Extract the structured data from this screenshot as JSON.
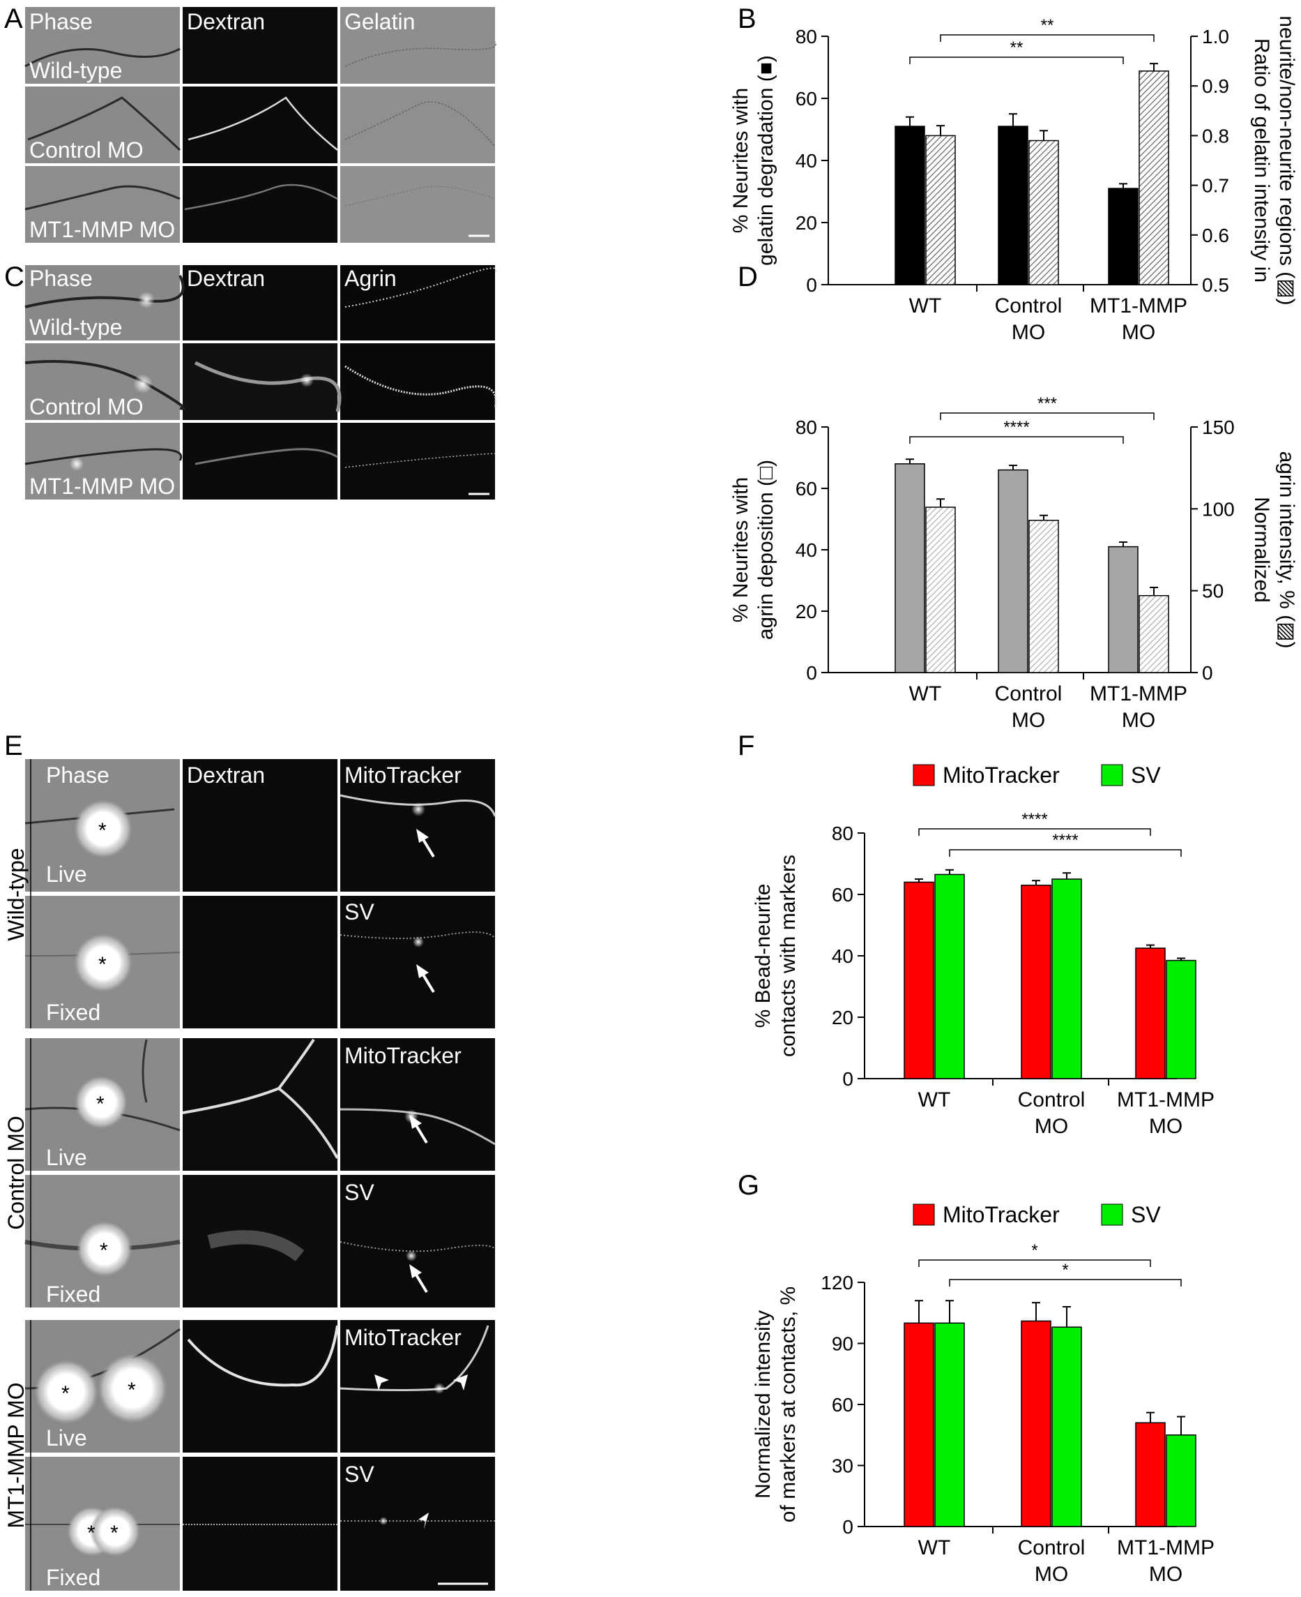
{
  "figure": {
    "panel_letters": {
      "A": "A",
      "B": "B",
      "C": "C",
      "D": "D",
      "E": "E",
      "F": "F",
      "G": "G"
    },
    "panel_A": {
      "column_titles": [
        "Phase",
        "Dextran",
        "Gelatin"
      ],
      "row_labels": [
        "Wild-type",
        "Control MO",
        "MT1-MMP MO"
      ]
    },
    "panel_C": {
      "column_titles": [
        "Phase",
        "Dextran",
        "Agrin"
      ],
      "row_labels": [
        "Wild-type",
        "Control MO",
        "MT1-MMP MO"
      ]
    },
    "panel_E": {
      "column_titles": [
        "Phase",
        "Dextran",
        "MitoTracker"
      ],
      "group_labels": [
        "Wild-type",
        "Control MO",
        "MT1-MMP MO"
      ],
      "live_label": "Live",
      "fixed_label": "Fixed",
      "marker_live": "MitoTracker",
      "marker_fixed": "SV",
      "bead_marker": "*"
    },
    "colors": {
      "black_bar": "#000000",
      "gray_bar": "#a6a6a6",
      "red": "#ff0000",
      "green": "#00ee00",
      "micro_bg_phase": "#8a8a8a",
      "micro_bg_dark": "#0d0d0d"
    }
  },
  "chart_data": [
    {
      "panel": "B",
      "type": "bar",
      "categories": [
        "WT",
        "Control MO",
        "MT1-MMP MO"
      ],
      "category_lines": [
        [
          "WT"
        ],
        [
          "Control",
          "MO"
        ],
        [
          "MT1-MMP",
          "MO"
        ]
      ],
      "series": [
        {
          "axis": "left",
          "fill": "solid-black",
          "values": [
            51,
            51,
            31
          ],
          "errors": [
            3,
            4,
            1.5
          ]
        },
        {
          "axis": "right",
          "fill": "hatched",
          "values": [
            0.8,
            0.79,
            0.93
          ],
          "errors": [
            0.02,
            0.02,
            0.015
          ]
        }
      ],
      "ylabel_left": [
        "% Neurites with",
        "gelatin degradation (■)"
      ],
      "ylabel_right": [
        "Ratio of gelatin intensity in",
        "neurite/non-neurite regions (▨)"
      ],
      "ylim_left": [
        0,
        80
      ],
      "yticks_left": [
        "0",
        "20",
        "40",
        "60",
        "80"
      ],
      "ylim_right": [
        0.5,
        1.0
      ],
      "yticks_right": [
        "0.5",
        "0.6",
        "0.7",
        "0.8",
        "0.9",
        "1.0"
      ],
      "significance": [
        "**",
        "**"
      ]
    },
    {
      "panel": "D",
      "type": "bar",
      "categories": [
        "WT",
        "Control MO",
        "MT1-MMP MO"
      ],
      "category_lines": [
        [
          "WT"
        ],
        [
          "Control",
          "MO"
        ],
        [
          "MT1-MMP",
          "MO"
        ]
      ],
      "series": [
        {
          "axis": "left",
          "fill": "solid-gray",
          "values": [
            68,
            66,
            41
          ],
          "errors": [
            1.5,
            1.5,
            1.5
          ]
        },
        {
          "axis": "right",
          "fill": "hatched",
          "values": [
            101,
            93,
            47
          ],
          "errors": [
            5,
            3,
            5
          ]
        }
      ],
      "ylabel_left": [
        "% Neurites with",
        "agrin deposition (□)"
      ],
      "ylabel_right": [
        "Normalized",
        "agrin intensity, % (▨)"
      ],
      "ylim_left": [
        0,
        80
      ],
      "yticks_left": [
        "0",
        "20",
        "40",
        "60",
        "80"
      ],
      "ylim_right": [
        0,
        150
      ],
      "yticks_right": [
        "0",
        "50",
        "100",
        "150"
      ],
      "significance": [
        "****",
        "***"
      ]
    },
    {
      "panel": "F",
      "type": "bar",
      "categories": [
        "WT",
        "Control MO",
        "MT1-MMP MO"
      ],
      "category_lines": [
        [
          "WT"
        ],
        [
          "Control",
          "MO"
        ],
        [
          "MT1-MMP",
          "MO"
        ]
      ],
      "series": [
        {
          "name": "MitoTracker",
          "values": [
            64,
            63,
            42.5
          ],
          "errors": [
            1,
            1.5,
            1
          ]
        },
        {
          "name": "SV",
          "values": [
            66.5,
            65,
            38.5
          ],
          "errors": [
            1.5,
            2,
            0.7
          ]
        }
      ],
      "ylabel": [
        "% Bead-neurite",
        "contacts with markers"
      ],
      "ylim": [
        0,
        80
      ],
      "yticks": [
        "0",
        "20",
        "40",
        "60",
        "80"
      ],
      "significance": [
        "****",
        "****"
      ]
    },
    {
      "panel": "G",
      "type": "bar",
      "categories": [
        "WT",
        "Control MO",
        "MT1-MMP MO"
      ],
      "category_lines": [
        [
          "WT"
        ],
        [
          "Control",
          "MO"
        ],
        [
          "MT1-MMP",
          "MO"
        ]
      ],
      "series": [
        {
          "name": "MitoTracker",
          "values": [
            100,
            101,
            51
          ],
          "errors": [
            11,
            9,
            5
          ]
        },
        {
          "name": "SV",
          "values": [
            100,
            98,
            45
          ],
          "errors": [
            11,
            10,
            9
          ]
        }
      ],
      "ylabel": [
        "Normalized intensity",
        "of markers at contacts, %"
      ],
      "ylim": [
        0,
        120
      ],
      "yticks": [
        "0",
        "30",
        "60",
        "90",
        "120"
      ],
      "significance": [
        "*",
        "*"
      ]
    }
  ]
}
